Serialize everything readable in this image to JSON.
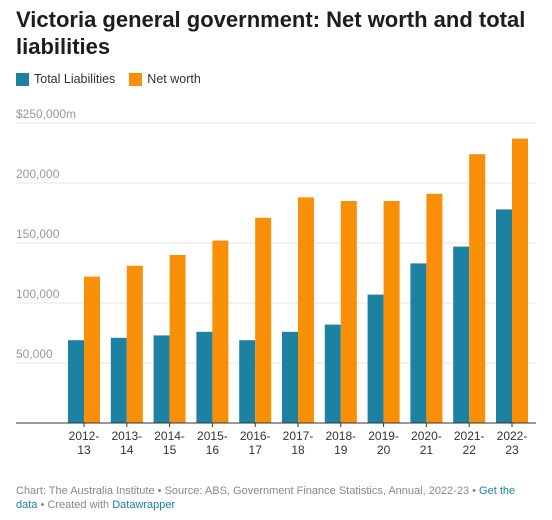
{
  "title": "Victoria general government: Net worth and total liabilities",
  "legend": [
    {
      "label": "Total Liabilities",
      "color": "#1d81a2"
    },
    {
      "label": "Net worth",
      "color": "#f98e07"
    }
  ],
  "footer": {
    "chart_by": "Chart: The Australia Institute",
    "source": "• Source: ABS, Government Finance Statistics, Annual, 2022-23 •",
    "get_data": "Get the data",
    "created_with": "• Created with",
    "datawrapper": "Datawrapper"
  },
  "chart_data": {
    "type": "bar",
    "title": "Victoria general government: Net worth and total liabilities",
    "xlabel": "",
    "ylabel": "",
    "ylim": [
      0,
      250000
    ],
    "yticks": [
      50000,
      100000,
      150000,
      200000,
      250000
    ],
    "ytick_labels": [
      "50,000",
      "100,000",
      "150,000",
      "200,000",
      "$250,000m"
    ],
    "grid": true,
    "legend_position": "top-left",
    "categories": [
      [
        "2012-",
        "13"
      ],
      [
        "2013-",
        "14"
      ],
      [
        "2014-",
        "15"
      ],
      [
        "2015-",
        "16"
      ],
      [
        "2016-",
        "17"
      ],
      [
        "2017-",
        "18"
      ],
      [
        "2018-",
        "19"
      ],
      [
        "2019-",
        "20"
      ],
      [
        "2020-",
        "21"
      ],
      [
        "2021-",
        "22"
      ],
      [
        "2022-",
        "23"
      ]
    ],
    "series": [
      {
        "name": "Total Liabilities",
        "color": "#1d81a2",
        "values": [
          69000,
          71000,
          73000,
          76000,
          69000,
          76000,
          82000,
          107000,
          133000,
          147000,
          178000
        ]
      },
      {
        "name": "Net worth",
        "color": "#f98e07",
        "values": [
          122000,
          131000,
          140000,
          152000,
          171000,
          188000,
          185000,
          185000,
          191000,
          224000,
          237000
        ]
      }
    ]
  }
}
